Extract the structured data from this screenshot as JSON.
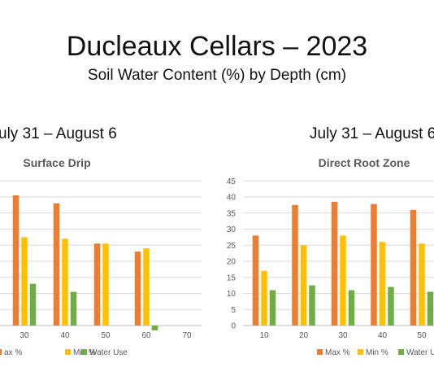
{
  "title": "Ducleaux Cellars – 2023",
  "subtitle": "Soil Water Content (%) by Depth (cm)",
  "left_date": "uly 31 – August 6",
  "right_date": "July 31 – August 6",
  "colors": {
    "max": "#ED7D31",
    "min": "#FFC000",
    "use": "#70AD47",
    "grid": "#D9D9D9",
    "axis": "#BFBFBF"
  },
  "chart_data": [
    {
      "type": "bar",
      "title": "Surface Drip",
      "categories": [
        "30",
        "40",
        "50",
        "60",
        "70"
      ],
      "series": [
        {
          "name": "Max %",
          "values": [
            40.5,
            38,
            25.5,
            23,
            null
          ]
        },
        {
          "name": "Min %",
          "values": [
            27.5,
            27,
            25.5,
            24,
            null
          ]
        },
        {
          "name": "Water Use",
          "values": [
            13,
            10.5,
            null,
            -1.5,
            null
          ]
        }
      ],
      "ylim": [
        -5,
        45
      ],
      "legend": [
        "ax %",
        "Min %",
        "Water Use"
      ],
      "legend_position": "bottom"
    },
    {
      "type": "bar",
      "title": "Direct Root Zone",
      "categories": [
        "10",
        "20",
        "30",
        "40",
        "50"
      ],
      "series": [
        {
          "name": "Max %",
          "values": [
            28,
            37.5,
            38.5,
            37.8,
            36
          ]
        },
        {
          "name": "Min %",
          "values": [
            17,
            25,
            28,
            26,
            25.5
          ]
        },
        {
          "name": "Water Use",
          "values": [
            11,
            12.5,
            11,
            12,
            10.5
          ]
        }
      ],
      "ylim": [
        0,
        45
      ],
      "yticks": [
        "0",
        "5",
        "10",
        "15",
        "20",
        "25",
        "30",
        "35",
        "40",
        "45"
      ],
      "legend": [
        "Max %",
        "Min %",
        "Water Us"
      ],
      "legend_position": "bottom"
    }
  ]
}
